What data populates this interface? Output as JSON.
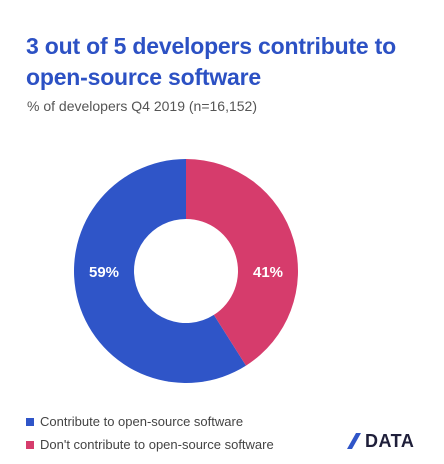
{
  "title": "3 out of 5 developers contribute to open-source software",
  "subtitle": "% of developers Q4 2019 (n=16,152)",
  "chart_data": {
    "type": "pie",
    "donut": true,
    "title": "3 out of 5 developers contribute to open-source software",
    "subtitle": "% of developers Q4 2019 (n=16,152)",
    "slices": [
      {
        "label": "Contribute to open-source software",
        "value": 59,
        "display": "59%",
        "color": "#2f55c8"
      },
      {
        "label": "Don't contribute to open-source software",
        "value": 41,
        "display": "41%",
        "color": "#d63c6c"
      }
    ],
    "legend_position": "bottom-left"
  },
  "legend": [
    {
      "label": "Contribute to open-source software",
      "color": "#2f55c8"
    },
    {
      "label": "Don't contribute to open-source software",
      "color": "#d63c6c"
    }
  ],
  "brand": {
    "text": "DATA"
  }
}
